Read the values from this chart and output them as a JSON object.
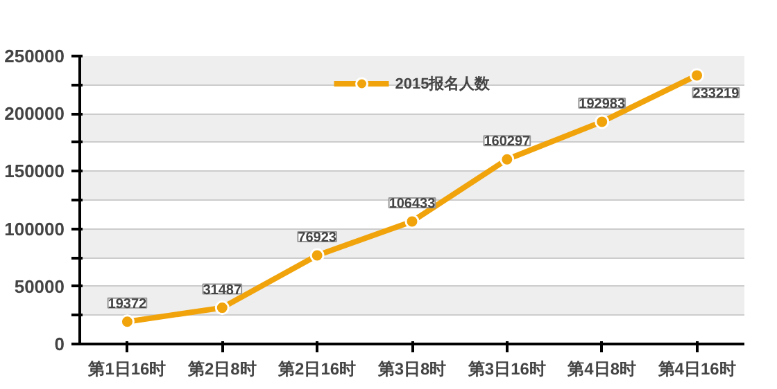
{
  "chart_data": {
    "type": "line",
    "categories": [
      "第1日16时",
      "第2日8时",
      "第2日16时",
      "第3日8时",
      "第3日16时",
      "第4日8时",
      "第4日16时"
    ],
    "series": [
      {
        "name": "2015报名人数",
        "color": "#f0a30a",
        "values": [
          19372,
          31487,
          76923,
          106433,
          160297,
          192983,
          233219
        ]
      }
    ],
    "ylim": [
      0,
      250000
    ],
    "yticks": [
      0,
      {
        "value": 25000,
        "label": null
      },
      50000,
      {
        "value": 75000,
        "label": null
      },
      100000,
      {
        "value": 125000,
        "label": null
      },
      150000,
      {
        "value": 175000,
        "label": null
      },
      200000,
      {
        "value": 225000,
        "label": null
      },
      250000
    ],
    "grid": "y",
    "legend": "top",
    "marker": "circle",
    "line_style": "solid",
    "data_labels": true
  }
}
